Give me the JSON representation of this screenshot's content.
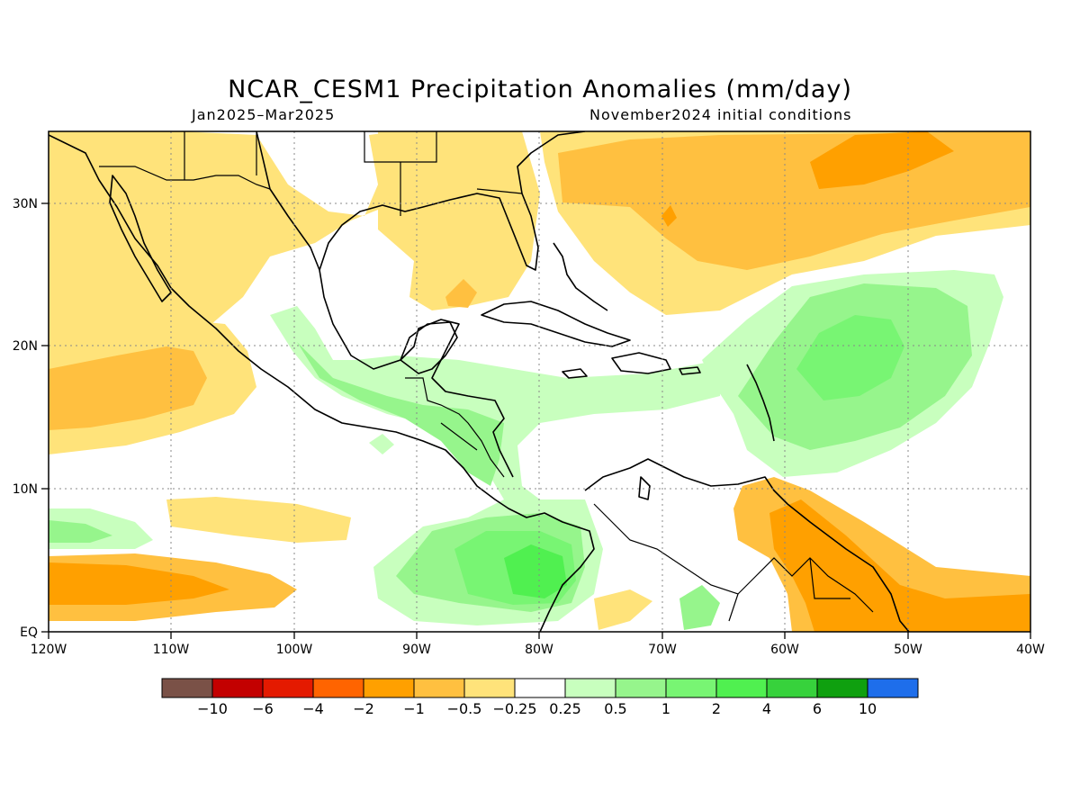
{
  "title": "NCAR_CESM1 Precipitation Anomalies (mm/day)",
  "subtitle_left": "Jan2025–Mar2025",
  "subtitle_right": "November2024 initial conditions",
  "lon_ticks": [
    "120W",
    "110W",
    "100W",
    "90W",
    "80W",
    "70W",
    "60W",
    "50W",
    "40W"
  ],
  "lat_ticks": [
    "30N",
    "20N",
    "10N",
    "EQ"
  ],
  "colorbar": {
    "colors": [
      "#7a5147",
      "#c30000",
      "#e41a00",
      "#ff6400",
      "#ffa000",
      "#ffc040",
      "#ffe37a",
      "#ffffff",
      "#c8ffbe",
      "#96f58c",
      "#78f573",
      "#50f050",
      "#37d23c",
      "#0fa00f",
      "#1e6eeb"
    ],
    "labels": [
      "−10",
      "−6",
      "−4",
      "−2",
      "−1",
      "−0.5",
      "−0.25",
      "0.25",
      "0.5",
      "1",
      "2",
      "4",
      "6",
      "10"
    ]
  }
}
